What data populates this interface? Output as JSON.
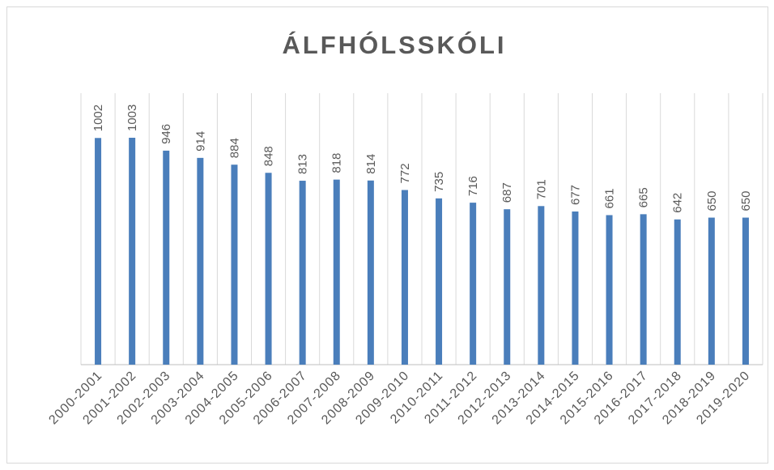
{
  "chart_data": {
    "type": "bar",
    "title": "ÁLFHÓLSSKÓLI",
    "categories": [
      "2000-2001",
      "2001-2002",
      "2002-2003",
      "2003-2004",
      "2004-2005",
      "2005-2006",
      "2006-2007",
      "2007-2008",
      "2008-2009",
      "2009-2010",
      "2010-2011",
      "2011-2012",
      "2012-2013",
      "2013-2014",
      "2014-2015",
      "2015-2016",
      "2016-2017",
      "2017-2018",
      "2018-2019",
      "2019-2020"
    ],
    "values": [
      1002,
      1003,
      946,
      914,
      884,
      848,
      813,
      818,
      814,
      772,
      735,
      716,
      687,
      701,
      677,
      661,
      665,
      642,
      650,
      650
    ],
    "color": "#4a7ebb",
    "ylim": [
      0,
      1200
    ],
    "data_labels": true
  }
}
